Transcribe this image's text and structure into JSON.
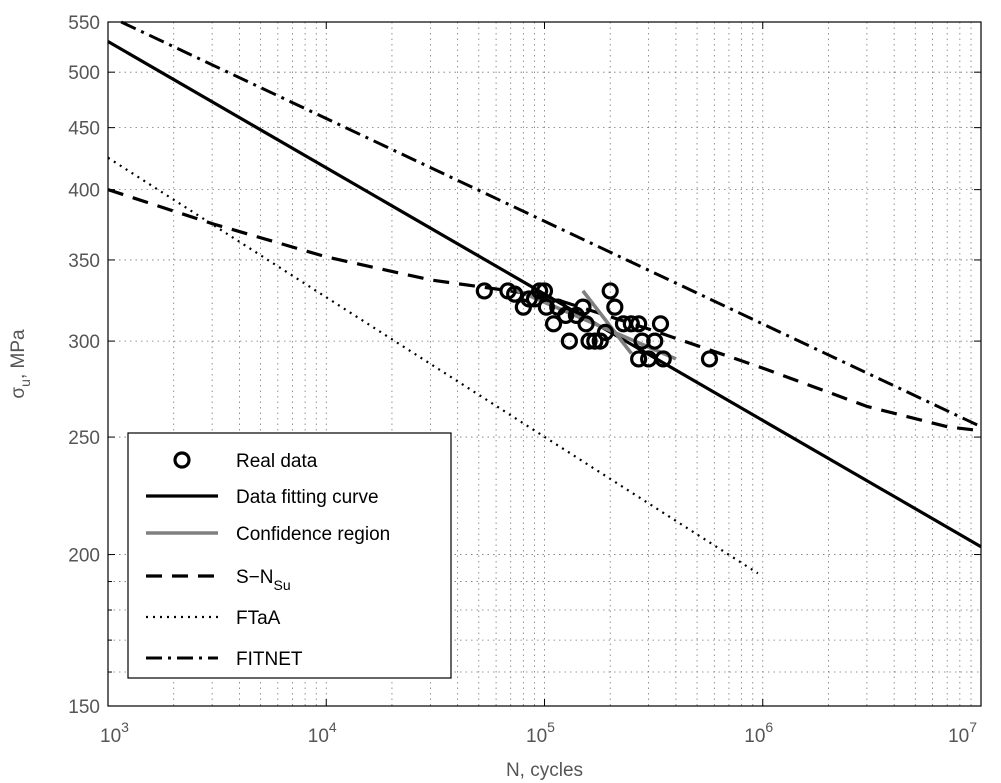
{
  "chart_data": {
    "type": "line",
    "xlabel": "N, cycles",
    "ylabel": {
      "base": "σ",
      "sub": "u",
      "rest": ", MPa"
    },
    "xscale": "log",
    "yscale": "log",
    "xlim": [
      1000,
      10000000
    ],
    "ylim": [
      150,
      550
    ],
    "grid": true,
    "legend_position": "bottom-left",
    "x_ticks": [
      {
        "value": 1000,
        "base": "10",
        "exp": "3"
      },
      {
        "value": 10000,
        "base": "10",
        "exp": "4"
      },
      {
        "value": 100000,
        "base": "10",
        "exp": "5"
      },
      {
        "value": 1000000,
        "base": "10",
        "exp": "6"
      },
      {
        "value": 10000000,
        "base": "10",
        "exp": "7"
      }
    ],
    "y_ticks": [
      {
        "value": 150,
        "label": "150"
      },
      {
        "value": 200,
        "label": "200"
      },
      {
        "value": 250,
        "label": "250"
      },
      {
        "value": 300,
        "label": "300"
      },
      {
        "value": 350,
        "label": "350"
      },
      {
        "value": 400,
        "label": "400"
      },
      {
        "value": 450,
        "label": "450"
      },
      {
        "value": 500,
        "label": "500"
      },
      {
        "value": 550,
        "label": "550"
      }
    ],
    "series": [
      {
        "name": "Real data",
        "kind": "markers",
        "color": "#000000",
        "points": [
          [
            53000,
            330
          ],
          [
            68000,
            330
          ],
          [
            73000,
            328
          ],
          [
            80000,
            320
          ],
          [
            85000,
            325
          ],
          [
            90000,
            325
          ],
          [
            95000,
            330
          ],
          [
            100000,
            330
          ],
          [
            102000,
            320
          ],
          [
            110000,
            310
          ],
          [
            115000,
            320
          ],
          [
            125000,
            315
          ],
          [
            130000,
            300
          ],
          [
            140000,
            315
          ],
          [
            150000,
            320
          ],
          [
            155000,
            310
          ],
          [
            160000,
            300
          ],
          [
            170000,
            300
          ],
          [
            180000,
            300
          ],
          [
            190000,
            305
          ],
          [
            200000,
            330
          ],
          [
            210000,
            320
          ],
          [
            230000,
            310
          ],
          [
            250000,
            310
          ],
          [
            270000,
            310
          ],
          [
            270000,
            290
          ],
          [
            280000,
            300
          ],
          [
            300000,
            290
          ],
          [
            320000,
            300
          ],
          [
            340000,
            310
          ],
          [
            350000,
            290
          ],
          [
            570000,
            290
          ]
        ]
      },
      {
        "name": "Data fitting curve",
        "kind": "line",
        "dash": "solid",
        "color": "#000000",
        "points": [
          [
            1000,
            530
          ],
          [
            10000000,
            203
          ]
        ]
      },
      {
        "name": "Confidence region",
        "kind": "line",
        "dash": "solid",
        "color": "#808080",
        "segments": [
          [
            [
              70000,
              332
            ],
            [
              400000,
              290
            ]
          ],
          [
            [
              150000,
              330
            ],
            [
              250000,
              293
            ]
          ]
        ]
      },
      {
        "name": {
          "base": "S−N",
          "sub": "Su"
        },
        "kind": "line",
        "dash": "dashed",
        "color": "#000000",
        "points": [
          [
            1000,
            400
          ],
          [
            3000,
            375
          ],
          [
            10000,
            352
          ],
          [
            30000,
            337
          ],
          [
            100000,
            327
          ],
          [
            300000,
            307
          ],
          [
            1000000,
            285
          ],
          [
            3000000,
            265
          ],
          [
            7000000,
            255
          ],
          [
            10000000,
            253
          ]
        ]
      },
      {
        "name": "FTaA",
        "kind": "line",
        "dash": "dotted",
        "color": "#000000",
        "points": [
          [
            1000,
            425
          ],
          [
            950000,
            193
          ]
        ]
      },
      {
        "name": "FITNET",
        "kind": "line",
        "dash": "dashdot",
        "color": "#000000",
        "points": [
          [
            1150,
            550
          ],
          [
            10000000,
            255
          ]
        ]
      }
    ]
  }
}
